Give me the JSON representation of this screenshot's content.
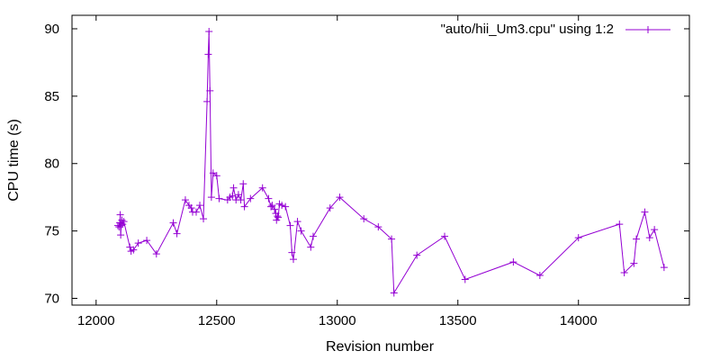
{
  "chart_data": {
    "type": "line",
    "xlabel": "Revision number",
    "ylabel": "CPU time (s)",
    "xlim": [
      11900,
      14460
    ],
    "ylim": [
      69.5,
      91
    ],
    "xticks": [
      12000,
      12500,
      13000,
      13500,
      14000
    ],
    "yticks": [
      70,
      75,
      80,
      85,
      90
    ],
    "grid": false,
    "legend_position": "top-right",
    "series": [
      {
        "name": "\"auto/hii_Um3.cpu\" using 1:2",
        "color": "#9400d3",
        "marker": "plus",
        "points": [
          [
            12090,
            75.4
          ],
          [
            12095,
            75.3
          ],
          [
            12098,
            75.6
          ],
          [
            12100,
            76.2
          ],
          [
            12102,
            74.7
          ],
          [
            12104,
            75.4
          ],
          [
            12107,
            75.8
          ],
          [
            12110,
            75.5
          ],
          [
            12115,
            75.7
          ],
          [
            12140,
            73.8
          ],
          [
            12145,
            73.5
          ],
          [
            12155,
            73.6
          ],
          [
            12175,
            74.1
          ],
          [
            12210,
            74.3
          ],
          [
            12250,
            73.3
          ],
          [
            12320,
            75.6
          ],
          [
            12335,
            74.8
          ],
          [
            12370,
            77.3
          ],
          [
            12385,
            76.9
          ],
          [
            12395,
            76.7
          ],
          [
            12400,
            76.4
          ],
          [
            12415,
            76.4
          ],
          [
            12430,
            76.9
          ],
          [
            12445,
            75.9
          ],
          [
            12460,
            84.6
          ],
          [
            12465,
            88.1
          ],
          [
            12468,
            89.8
          ],
          [
            12472,
            85.4
          ],
          [
            12478,
            77.5
          ],
          [
            12485,
            79.3
          ],
          [
            12500,
            79.1
          ],
          [
            12510,
            77.4
          ],
          [
            12545,
            77.3
          ],
          [
            12555,
            77.5
          ],
          [
            12565,
            77.6
          ],
          [
            12570,
            78.2
          ],
          [
            12580,
            77.3
          ],
          [
            12590,
            77.7
          ],
          [
            12600,
            77.3
          ],
          [
            12610,
            78.5
          ],
          [
            12615,
            76.8
          ],
          [
            12640,
            77.4
          ],
          [
            12690,
            78.2
          ],
          [
            12715,
            77.4
          ],
          [
            12725,
            76.8
          ],
          [
            12730,
            76.9
          ],
          [
            12740,
            76.6
          ],
          [
            12745,
            76.3
          ],
          [
            12748,
            75.8
          ],
          [
            12752,
            76.1
          ],
          [
            12755,
            76.0
          ],
          [
            12760,
            77.0
          ],
          [
            12770,
            76.9
          ],
          [
            12785,
            76.8
          ],
          [
            12805,
            75.4
          ],
          [
            12812,
            73.4
          ],
          [
            12818,
            72.9
          ],
          [
            12835,
            75.7
          ],
          [
            12850,
            75.0
          ],
          [
            12890,
            73.8
          ],
          [
            12900,
            74.6
          ],
          [
            12970,
            76.7
          ],
          [
            13010,
            77.5
          ],
          [
            13110,
            75.9
          ],
          [
            13170,
            75.3
          ],
          [
            13225,
            74.4
          ],
          [
            13235,
            70.4
          ],
          [
            13330,
            73.2
          ],
          [
            13445,
            74.6
          ],
          [
            13530,
            71.4
          ],
          [
            13730,
            72.7
          ],
          [
            13840,
            71.7
          ],
          [
            14000,
            74.5
          ],
          [
            14170,
            75.5
          ],
          [
            14190,
            71.9
          ],
          [
            14230,
            72.6
          ],
          [
            14240,
            74.4
          ],
          [
            14275,
            76.4
          ],
          [
            14295,
            74.5
          ],
          [
            14315,
            75.1
          ],
          [
            14355,
            72.3
          ]
        ]
      }
    ]
  }
}
